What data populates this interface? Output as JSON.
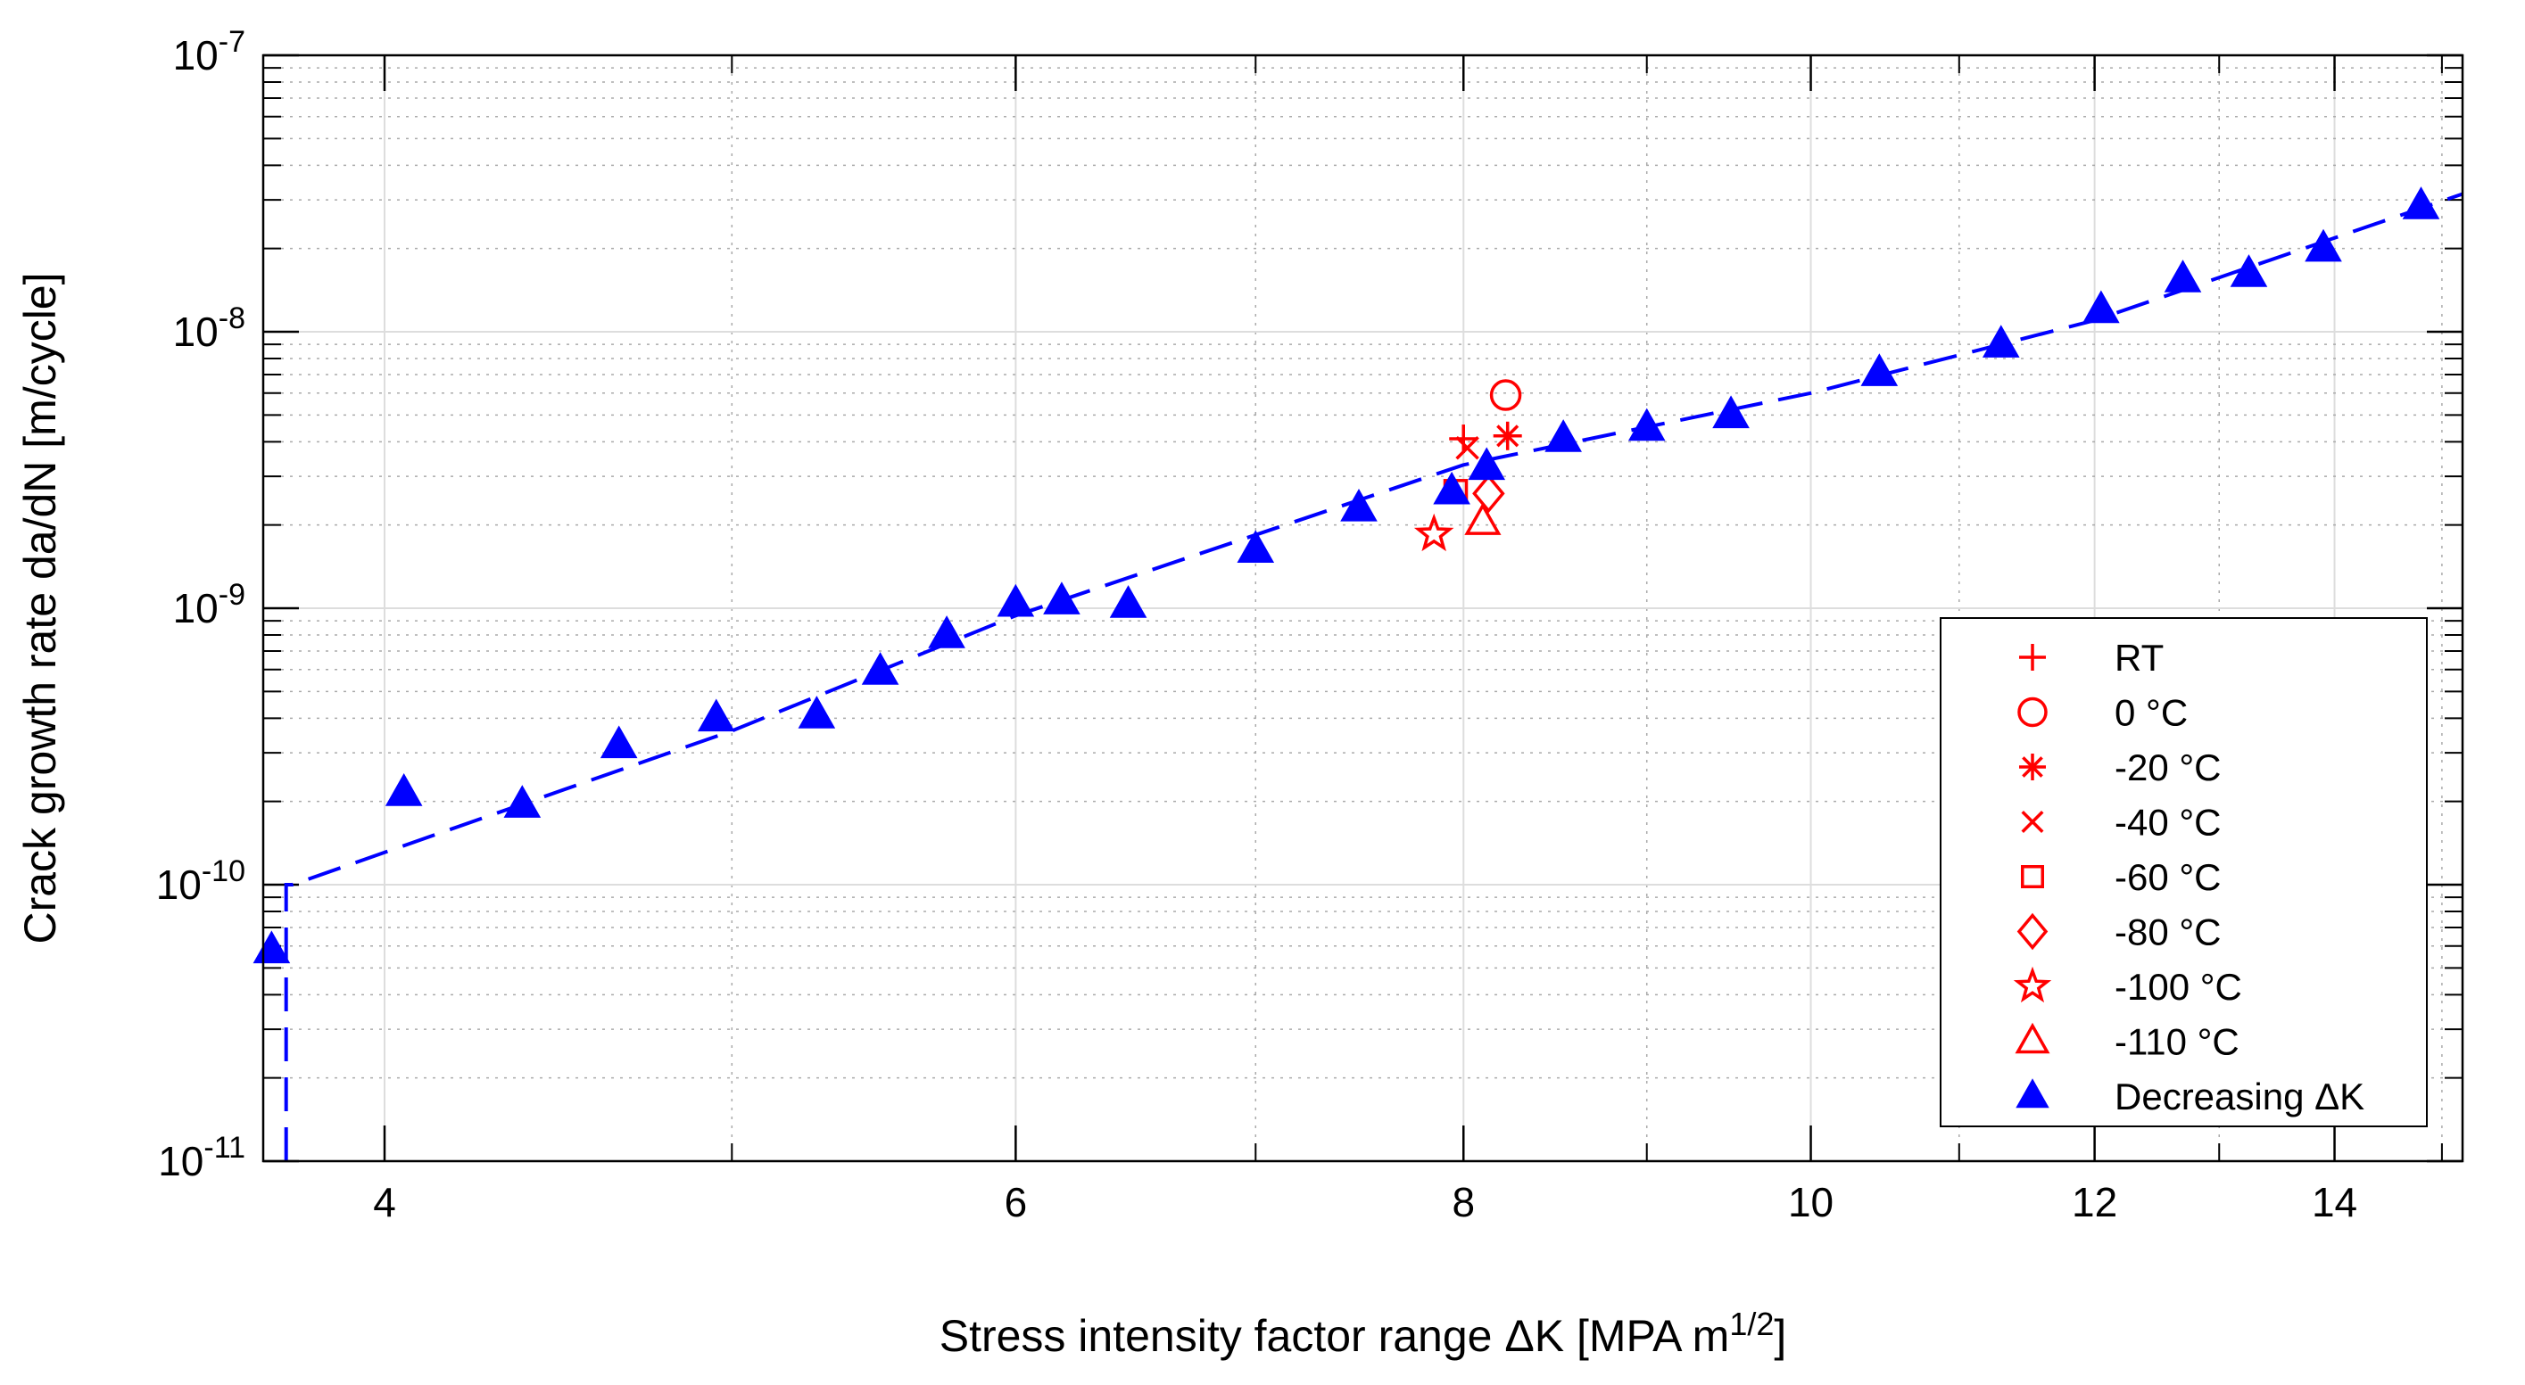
{
  "chart_data": {
    "type": "scatter",
    "title": "",
    "xlabel": {
      "main": "Stress intensity factor range ",
      "delta": "Δ",
      "k": "K [MPA m",
      "sup": "1/2",
      "close": "]"
    },
    "ylabel": "Crack growth rate da/dN [m/cycle]",
    "xscale": "log",
    "yscale": "log",
    "xlim": [
      3.7,
      15.2
    ],
    "ylim": [
      1e-11,
      1e-07
    ],
    "grid": true,
    "x_ticks": [
      {
        "value": 4,
        "label": "4"
      },
      {
        "value": 6,
        "label": "6"
      },
      {
        "value": 8,
        "label": "8"
      },
      {
        "value": 10,
        "label": "10"
      },
      {
        "value": 12,
        "label": "12"
      },
      {
        "value": 14,
        "label": "14"
      }
    ],
    "y_ticks": [
      {
        "value": 1e-11,
        "base": "10",
        "exp": "-11"
      },
      {
        "value": 1e-10,
        "base": "10",
        "exp": "-10"
      },
      {
        "value": 1e-09,
        "base": "10",
        "exp": "-9"
      },
      {
        "value": 1e-08,
        "base": "10",
        "exp": "-8"
      },
      {
        "value": 1e-07,
        "base": "10",
        "exp": "-7"
      }
    ],
    "series": [
      {
        "name": "RT",
        "marker": "plus",
        "color": "#ff0000",
        "points": [
          [
            8.0,
            4.1e-09
          ]
        ]
      },
      {
        "name": "0 °C",
        "marker": "circle",
        "color": "#ff0000",
        "points": [
          [
            8.22,
            5.9e-09
          ]
        ]
      },
      {
        "name": "-20 °C",
        "marker": "asterisk",
        "color": "#ff0000",
        "points": [
          [
            8.23,
            4.2e-09
          ]
        ]
      },
      {
        "name": "-40 °C",
        "marker": "x",
        "color": "#ff0000",
        "points": [
          [
            8.02,
            3.8e-09
          ]
        ]
      },
      {
        "name": "-60 °C",
        "marker": "square",
        "color": "#ff0000",
        "points": [
          [
            7.96,
            2.65e-09
          ]
        ]
      },
      {
        "name": "-80 °C",
        "marker": "diamond",
        "color": "#ff0000",
        "points": [
          [
            8.13,
            2.6e-09
          ]
        ]
      },
      {
        "name": "-100 °C",
        "marker": "star",
        "color": "#ff0000",
        "points": [
          [
            7.85,
            1.85e-09
          ]
        ]
      },
      {
        "name": "-110 °C",
        "marker": "triangle-open",
        "color": "#ff0000",
        "points": [
          [
            8.1,
            2.05e-09
          ]
        ]
      },
      {
        "name": "Decreasing ΔK",
        "marker": "triangle-filled",
        "color": "#0000ff",
        "points": [
          [
            3.72,
            5.8e-11
          ],
          [
            4.05,
            2.15e-10
          ],
          [
            4.37,
            1.95e-10
          ],
          [
            4.65,
            3.2e-10
          ],
          [
            4.95,
            4e-10
          ],
          [
            5.28,
            4.1e-10
          ],
          [
            5.5,
            5.9e-10
          ],
          [
            5.74,
            8e-10
          ],
          [
            6.0,
            1.04e-09
          ],
          [
            6.18,
            1.06e-09
          ],
          [
            6.45,
            1.03e-09
          ],
          [
            7.0,
            1.63e-09
          ],
          [
            7.48,
            2.3e-09
          ],
          [
            7.94,
            2.65e-09
          ],
          [
            8.12,
            3.25e-09
          ],
          [
            8.53,
            4.1e-09
          ],
          [
            9.0,
            4.5e-09
          ],
          [
            9.5,
            5e-09
          ],
          [
            10.45,
            7.1e-09
          ],
          [
            11.3,
            9e-09
          ],
          [
            12.05,
            1.2e-08
          ],
          [
            12.7,
            1.55e-08
          ],
          [
            13.25,
            1.62e-08
          ],
          [
            13.9,
            2e-08
          ],
          [
            14.8,
            2.85e-08
          ]
        ]
      }
    ],
    "fit_line": {
      "style": "dashed",
      "color": "#0000ff",
      "points": [
        [
          3.755,
          1e-11
        ],
        [
          3.755,
          1e-10
        ],
        [
          3.77,
          1e-10
        ],
        [
          5.0,
          3.6e-10
        ],
        [
          6.0,
          9.4e-10
        ],
        [
          8.0,
          3.3e-09
        ],
        [
          10.0,
          6e-09
        ],
        [
          12.0,
          1.1e-08
        ],
        [
          15.2,
          3.15e-08
        ]
      ]
    },
    "legend": {
      "position": "bottom-right",
      "delta_label_main": "Decreasing ",
      "delta_label_delta": "Δ",
      "delta_label_k": "K"
    }
  }
}
